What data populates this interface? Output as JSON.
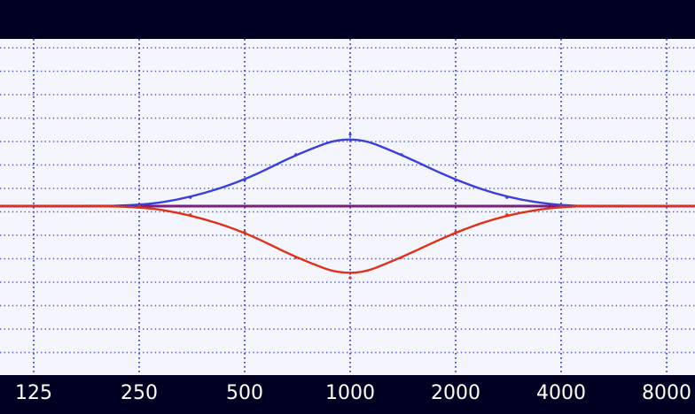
{
  "window": {
    "title": ""
  },
  "colors": {
    "background": "#f4f5fd",
    "frame": "#000022",
    "grid": "#3340d0",
    "boost_curve": "#3a3fd8",
    "cut_curve": "#e0301a",
    "flat_line": "#7a1e7e"
  },
  "chart_data": {
    "type": "line",
    "title": "",
    "xlabel": "",
    "ylabel": "",
    "x_scale": "log",
    "x_ticks": [
      "125",
      "250",
      "500",
      "1000",
      "2000",
      "4000",
      "8000"
    ],
    "grid": true,
    "y_range": [
      -5,
      5
    ],
    "series": [
      {
        "color": "#3a3fd8",
        "x": [
          100,
          125,
          250,
          350,
          500,
          700,
          1000,
          1400,
          2000,
          2800,
          4000,
          6000,
          10000
        ],
        "y": [
          0,
          0,
          0,
          0.3,
          0.9,
          1.8,
          2.5,
          1.8,
          0.9,
          0.3,
          0,
          0,
          0
        ]
      },
      {
        "color": "#e0301a",
        "x": [
          100,
          125,
          250,
          350,
          500,
          700,
          1000,
          1400,
          2000,
          2800,
          4000,
          6000,
          10000
        ],
        "y": [
          0,
          0,
          0,
          -0.3,
          -0.9,
          -1.8,
          -2.5,
          -1.8,
          -0.9,
          -0.3,
          0,
          0,
          0
        ]
      }
    ]
  }
}
